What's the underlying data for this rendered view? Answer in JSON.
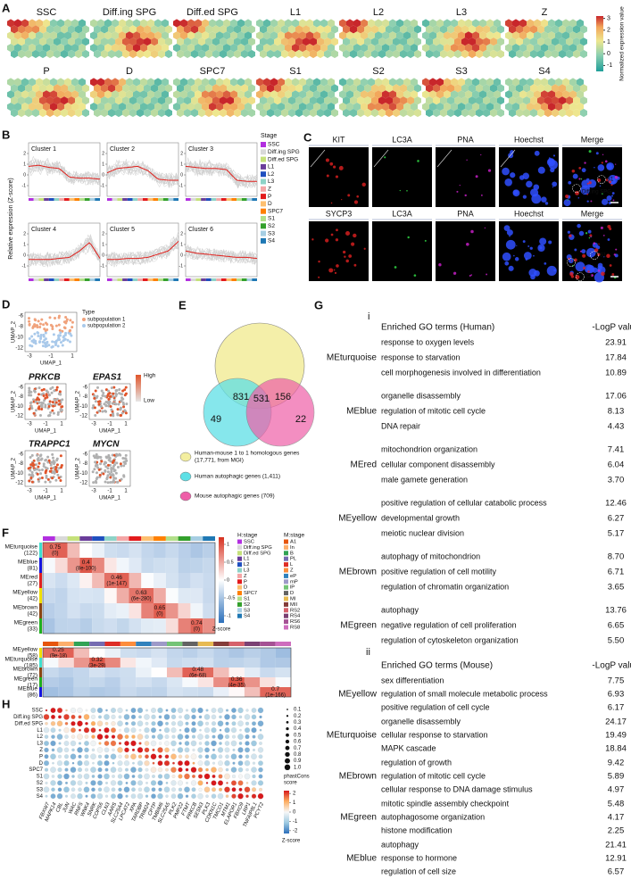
{
  "labels": [
    "A",
    "B",
    "C",
    "D",
    "E",
    "F",
    "G",
    "H"
  ],
  "a": {
    "row1": [
      "SSC",
      "Diff.ing SPG",
      "Diff.ed SPG",
      "L1",
      "L2",
      "L3",
      "Z"
    ],
    "row2": [
      "P",
      "D",
      "SPC7",
      "S1",
      "S2",
      "S3",
      "S4"
    ],
    "colorbar": {
      "title": "Normalized expression value",
      "lim": [
        -1.5,
        3.2
      ],
      "ticks": [
        -1,
        0,
        1,
        2,
        3
      ]
    }
  },
  "b": {
    "clusters": [
      "Cluster 1",
      "Cluster 2",
      "Cluster 3",
      "Cluster 4",
      "Cluster 5",
      "Cluster 6"
    ],
    "ylabel": "Relative expression (Z-score)",
    "ylim": [
      -2,
      3
    ],
    "yticks": [
      -1,
      0,
      1,
      2
    ],
    "legend_title": "Stage",
    "stages": [
      {
        "name": "SSC",
        "color": "#b22fe0"
      },
      {
        "name": "Diff.ing SPG",
        "color": "#d9d9d9"
      },
      {
        "name": "Diff.ed SPG",
        "color": "#c5e17a"
      },
      {
        "name": "L1",
        "color": "#6a3d9a"
      },
      {
        "name": "L2",
        "color": "#1f4fbf"
      },
      {
        "name": "L3",
        "color": "#8dd3c7"
      },
      {
        "name": "Z",
        "color": "#f4a6a6"
      },
      {
        "name": "P",
        "color": "#e31a1c"
      },
      {
        "name": "D",
        "color": "#fdbf6f"
      },
      {
        "name": "SPC7",
        "color": "#ff7f00"
      },
      {
        "name": "S1",
        "color": "#b2df8a"
      },
      {
        "name": "S2",
        "color": "#33a02c"
      },
      {
        "name": "S3",
        "color": "#a6cee3"
      },
      {
        "name": "S4",
        "color": "#1f78b4"
      }
    ]
  },
  "c": {
    "row1": [
      "KIT",
      "LC3A",
      "PNA",
      "Hoechst",
      "Merge"
    ],
    "row2": [
      "SYCP3",
      "LC3A",
      "PNA",
      "Hoechst",
      "Merge"
    ],
    "colors": [
      "#e02020",
      "#2ecc40",
      "#d020d0",
      "#2f6fff",
      "#111111"
    ],
    "annot1": [
      "S1",
      "Diff.ing SPG"
    ],
    "annot2": [
      "S1",
      "P",
      "S4"
    ]
  },
  "d": {
    "type_title": "Type",
    "types": [
      {
        "name": "subpopulation 1",
        "color": "#f0a27c"
      },
      {
        "name": "subpopulation 2",
        "color": "#a9c9ea"
      }
    ],
    "genes": [
      "PRKCB",
      "EPAS1",
      "TRAPPC1",
      "MYCN"
    ],
    "xlabel": "UMAP_1",
    "ylabel": "UMAP_2",
    "xticks": [
      -3,
      -1,
      1
    ],
    "yticks": [
      -6,
      -8,
      -10,
      -12
    ],
    "high": "High",
    "low": "Low"
  },
  "e": {
    "regions": [
      49,
      831,
      531,
      156,
      22
    ],
    "legend": [
      {
        "lines": [
          "Human-mouse 1 to 1 homologous genes",
          "(17,771, from MGI)"
        ],
        "color": "#f3eea0"
      },
      {
        "lines": [
          "Human autophagic genes (1,411)"
        ],
        "color": "#5ee0e6"
      },
      {
        "lines": [
          "Mouse autophagic genes (709)"
        ],
        "color": "#ee5fa8"
      }
    ]
  },
  "f": {
    "top": [
      {
        "module": "MEturquoise",
        "count": "(122)",
        "r": "0.75",
        "p": "(0)",
        "color": "#40e0d0"
      },
      {
        "module": "MEblue",
        "count": "(81)",
        "r": "0.4",
        "p": "(8e-100)",
        "color": "#1414e0"
      },
      {
        "module": "MEred",
        "count": "(27)",
        "r": "0.46",
        "p": "(1e-147)",
        "color": "#e02020"
      },
      {
        "module": "MEyellow",
        "count": "(42)",
        "r": "0.63",
        "p": "(6e-280)",
        "color": "#f0e000"
      },
      {
        "module": "MEbrown",
        "count": "(42)",
        "r": "0.65",
        "p": "(0)",
        "color": "#8b4513"
      },
      {
        "module": "MEgreen",
        "count": "(33)",
        "r": "0.74",
        "p": "(0)",
        "color": "#20b020"
      }
    ],
    "bottom": [
      {
        "module": "MEyellow",
        "count": "(58)",
        "r": "0.25",
        "p": "(9e-18)",
        "color": "#f0e000"
      },
      {
        "module": "MEturquoise",
        "count": "(185)",
        "r": "0.32",
        "p": "(3e-29)",
        "color": "#40e0d0"
      },
      {
        "module": "MEbrown",
        "count": "(72)",
        "r": "0.48",
        "p": "(6e-68)",
        "color": "#8b4513"
      },
      {
        "module": "MEgreen",
        "count": "(17)",
        "r": "0.36",
        "p": "(4e-35)",
        "color": "#20b020"
      },
      {
        "module": "MEblue",
        "count": "(86)",
        "r": "0.7",
        "p": "(1e-166)",
        "color": "#1414e0"
      }
    ],
    "colorbar": {
      "title": "Z-score",
      "lim": [
        -1.2,
        1.2
      ],
      "ticks": [
        1,
        0.5,
        0,
        -0.5,
        -1
      ]
    },
    "h_title": "H:stage",
    "m_title": "M:stage",
    "m_stages": [
      {
        "name": "A1",
        "color": "#e6550d"
      },
      {
        "name": "In",
        "color": "#fdae6b"
      },
      {
        "name": "B",
        "color": "#31a354"
      },
      {
        "name": "PL",
        "color": "#756bb1"
      },
      {
        "name": "L",
        "color": "#de2d26"
      },
      {
        "name": "Z",
        "color": "#fd8d3c"
      },
      {
        "name": "eP",
        "color": "#3182bd"
      },
      {
        "name": "mP",
        "color": "#9e9ac8"
      },
      {
        "name": "lP",
        "color": "#74c476"
      },
      {
        "name": "D",
        "color": "#636363"
      },
      {
        "name": "MI",
        "color": "#e7ba52"
      },
      {
        "name": "MII",
        "color": "#843c39"
      },
      {
        "name": "RS2",
        "color": "#d6616b"
      },
      {
        "name": "RS4",
        "color": "#7b4173"
      },
      {
        "name": "RS6",
        "color": "#a55194"
      },
      {
        "name": "RS8",
        "color": "#ce6dbd"
      }
    ]
  },
  "g": {
    "i": "i",
    "ii": "ii",
    "human": {
      "header": "Enriched GO terms (Human)",
      "value_header": "-LogP value",
      "modules": [
        {
          "name": "MEturquoise",
          "color": "#5ccdc8",
          "terms": [
            {
              "term": "response to oxygen levels",
              "value": "23.91"
            },
            {
              "term": "response to starvation",
              "value": "17.84"
            },
            {
              "term": "cell morphogenesis involved in differentiation",
              "value": "10.89"
            }
          ]
        },
        {
          "name": "MEblue",
          "color": "#1414c8",
          "terms": [
            {
              "term": "organelle disassembly",
              "value": "17.06"
            },
            {
              "term": "regulation of mitotic cell cycle",
              "value": "8.13"
            },
            {
              "term": "DNA repair",
              "value": "4.43"
            }
          ]
        },
        {
          "name": "MEred",
          "color": "#a0141e",
          "terms": [
            {
              "term": "mitochondrion organization",
              "value": "7.41"
            },
            {
              "term": "cellular component disassembly",
              "value": "6.04"
            },
            {
              "term": "male gamete generation",
              "value": "3.70"
            }
          ]
        },
        {
          "name": "MEyellow",
          "color": "#e2c800",
          "terms": [
            {
              "term": "positive regulation of cellular catabolic process",
              "value": "12.46"
            },
            {
              "term": "developmental growth",
              "value": "6.27"
            },
            {
              "term": "meiotic nuclear division",
              "value": "5.17"
            }
          ]
        },
        {
          "name": "MEbrown",
          "color": "#8b3a1a",
          "terms": [
            {
              "term": "autophagy of mitochondrion",
              "value": "8.70"
            },
            {
              "term": "positive regulation of cell motility",
              "value": "6.71"
            },
            {
              "term": "regulation of chromatin organization",
              "value": "3.65"
            }
          ]
        },
        {
          "name": "MEgreen",
          "color": "#74c43c",
          "terms": [
            {
              "term": "autophagy",
              "value": "13.76"
            },
            {
              "term": "negative regulation of cell proliferation",
              "value": "6.65"
            },
            {
              "term": "regulation of cytoskeleton organization",
              "value": "5.50"
            }
          ]
        }
      ]
    },
    "mouse": {
      "header": "Enriched GO terms (Mouse)",
      "value_header": "-LogP value",
      "modules": [
        {
          "name": "MEyellow",
          "color": "#e2c800",
          "terms": [
            {
              "term": "sex differentiation",
              "value": "7.75"
            },
            {
              "term": "regulation of small molecule metabolic process",
              "value": "6.93"
            },
            {
              "term": "positive regulation of cell cycle",
              "value": "6.17"
            }
          ]
        },
        {
          "name": "MEturquoise",
          "color": "#5ccdc8",
          "terms": [
            {
              "term": "organelle disassembly",
              "value": "24.17"
            },
            {
              "term": "cellular response to starvation",
              "value": "19.49"
            },
            {
              "term": "MAPK cascade",
              "value": "18.84"
            }
          ]
        },
        {
          "name": "MEbrown",
          "color": "#8b3a1a",
          "terms": [
            {
              "term": "regulation of growth",
              "value": "9.42"
            },
            {
              "term": "regulation of mitotic cell cycle",
              "value": "5.89"
            },
            {
              "term": "cellular response to DNA damage stimulus",
              "value": "4.97"
            }
          ]
        },
        {
          "name": "MEgreen",
          "color": "#74c43c",
          "terms": [
            {
              "term": "mitotic spindle assembly checkpoint",
              "value": "5.48"
            },
            {
              "term": "autophagosome organization",
              "value": "4.17"
            },
            {
              "term": "histone modification",
              "value": "2.25"
            }
          ]
        },
        {
          "name": "MEblue",
          "color": "#1414c8",
          "terms": [
            {
              "term": "autophagy",
              "value": "21.41"
            },
            {
              "term": "response to hormone",
              "value": "12.91"
            },
            {
              "term": "regulation of cell size",
              "value": "6.57"
            }
          ]
        }
      ]
    }
  },
  "h": {
    "genes": [
      "FBXW7",
      "MAPK14",
      "CBL",
      "JUN",
      "WAC",
      "RNF5",
      "WNK4",
      "SNRK",
      "COPS6",
      "CLN3",
      "AARS",
      "SLC25A4",
      "LPCAT2",
      "XPA",
      "TARDBP",
      "TRIM24",
      "CPTP",
      "TMBIM6",
      "SLC25A5",
      "PLK2",
      "PMP22",
      "FTMT",
      "PRKCB",
      "SESN3",
      "PLK3",
      "CDKN1C",
      "TMCO1",
      "MTM1",
      "ELAPOR1",
      "FBXO9",
      "LRP1",
      "TNFAIP8L1",
      "PCYT2"
    ],
    "size_title": [
      "phastCons",
      "score"
    ],
    "sizes": [
      0.1,
      0.2,
      0.3,
      0.4,
      0.5,
      0.6,
      0.7,
      0.8,
      0.9,
      {
        "value": 1,
        "label": "1.0"
      }
    ],
    "colorbar": {
      "title": "Z-score",
      "lim": [
        -2.3,
        2.3
      ],
      "ticks": [
        2,
        1,
        0,
        -1,
        -2
      ]
    }
  }
}
